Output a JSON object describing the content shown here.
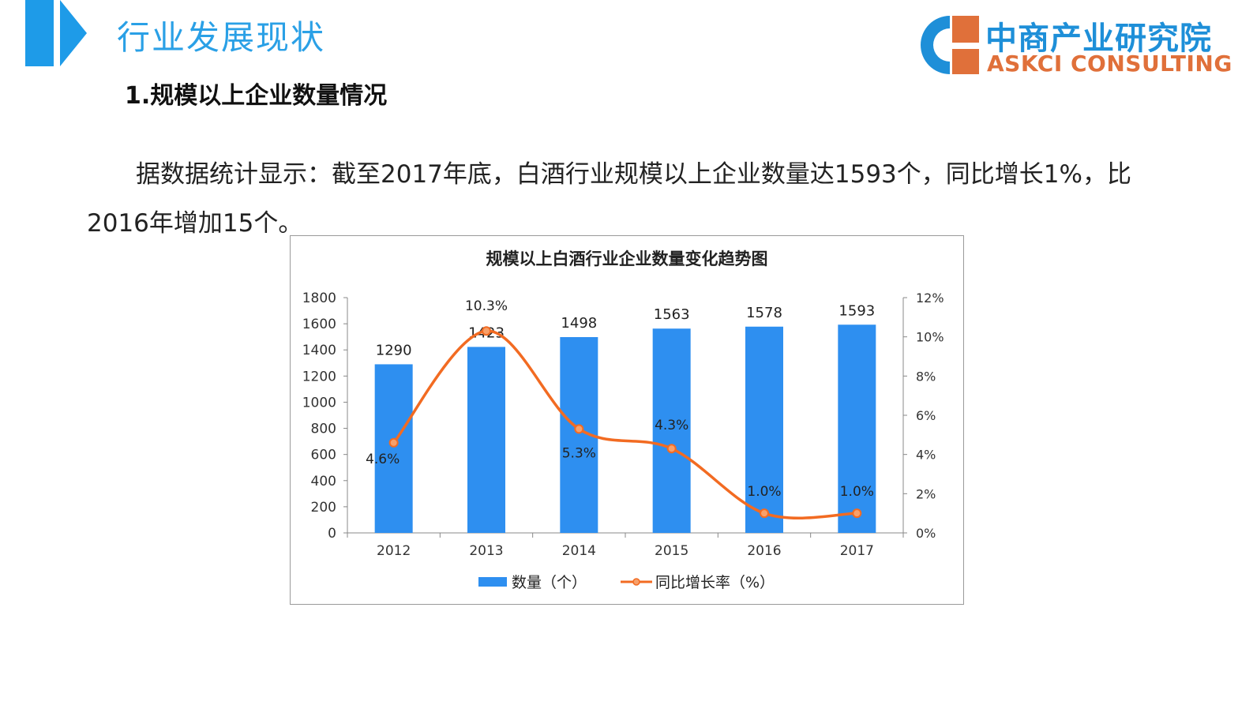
{
  "header": {
    "title": "行业发展现状",
    "logo_cn": "中商产业研究院",
    "logo_en": "ASKCI CONSULTING",
    "accent": "#1e9be8",
    "logo_orange": "#e0703a"
  },
  "section": {
    "title": "1.规模以上企业数量情况",
    "paragraph": "据数据统计显示：截至2017年底，白酒行业规模以上企业数量达1593个，同比增长1%，比2016年增加15个。"
  },
  "chart_data": {
    "type": "bar",
    "title": "规模以上白酒行业企业数量变化趋势图",
    "categories": [
      "2012",
      "2013",
      "2014",
      "2015",
      "2016",
      "2017"
    ],
    "series": [
      {
        "name": "数量（个）",
        "type": "bar",
        "color": "#2e8ff0",
        "values": [
          1290,
          1423,
          1498,
          1563,
          1578,
          1593
        ],
        "labels": [
          "1290",
          "1423",
          "1498",
          "1563",
          "1578",
          "1593"
        ]
      },
      {
        "name": "同比增长率（%）",
        "type": "line",
        "color": "#f26b22",
        "values": [
          4.6,
          10.3,
          5.3,
          4.3,
          1.0,
          1.0
        ],
        "labels": [
          "4.6%",
          "10.3%",
          "5.3%",
          "4.3%",
          "1.0%",
          "1.0%"
        ]
      }
    ],
    "ylim": [
      0,
      1800
    ],
    "yticks": [
      "0",
      "200",
      "400",
      "600",
      "800",
      "1000",
      "1200",
      "1400",
      "1600",
      "1800"
    ],
    "y2lim": [
      0,
      12
    ],
    "y2ticks": [
      "0%",
      "2%",
      "4%",
      "6%",
      "8%",
      "10%",
      "12%"
    ],
    "legend": "bottom"
  }
}
